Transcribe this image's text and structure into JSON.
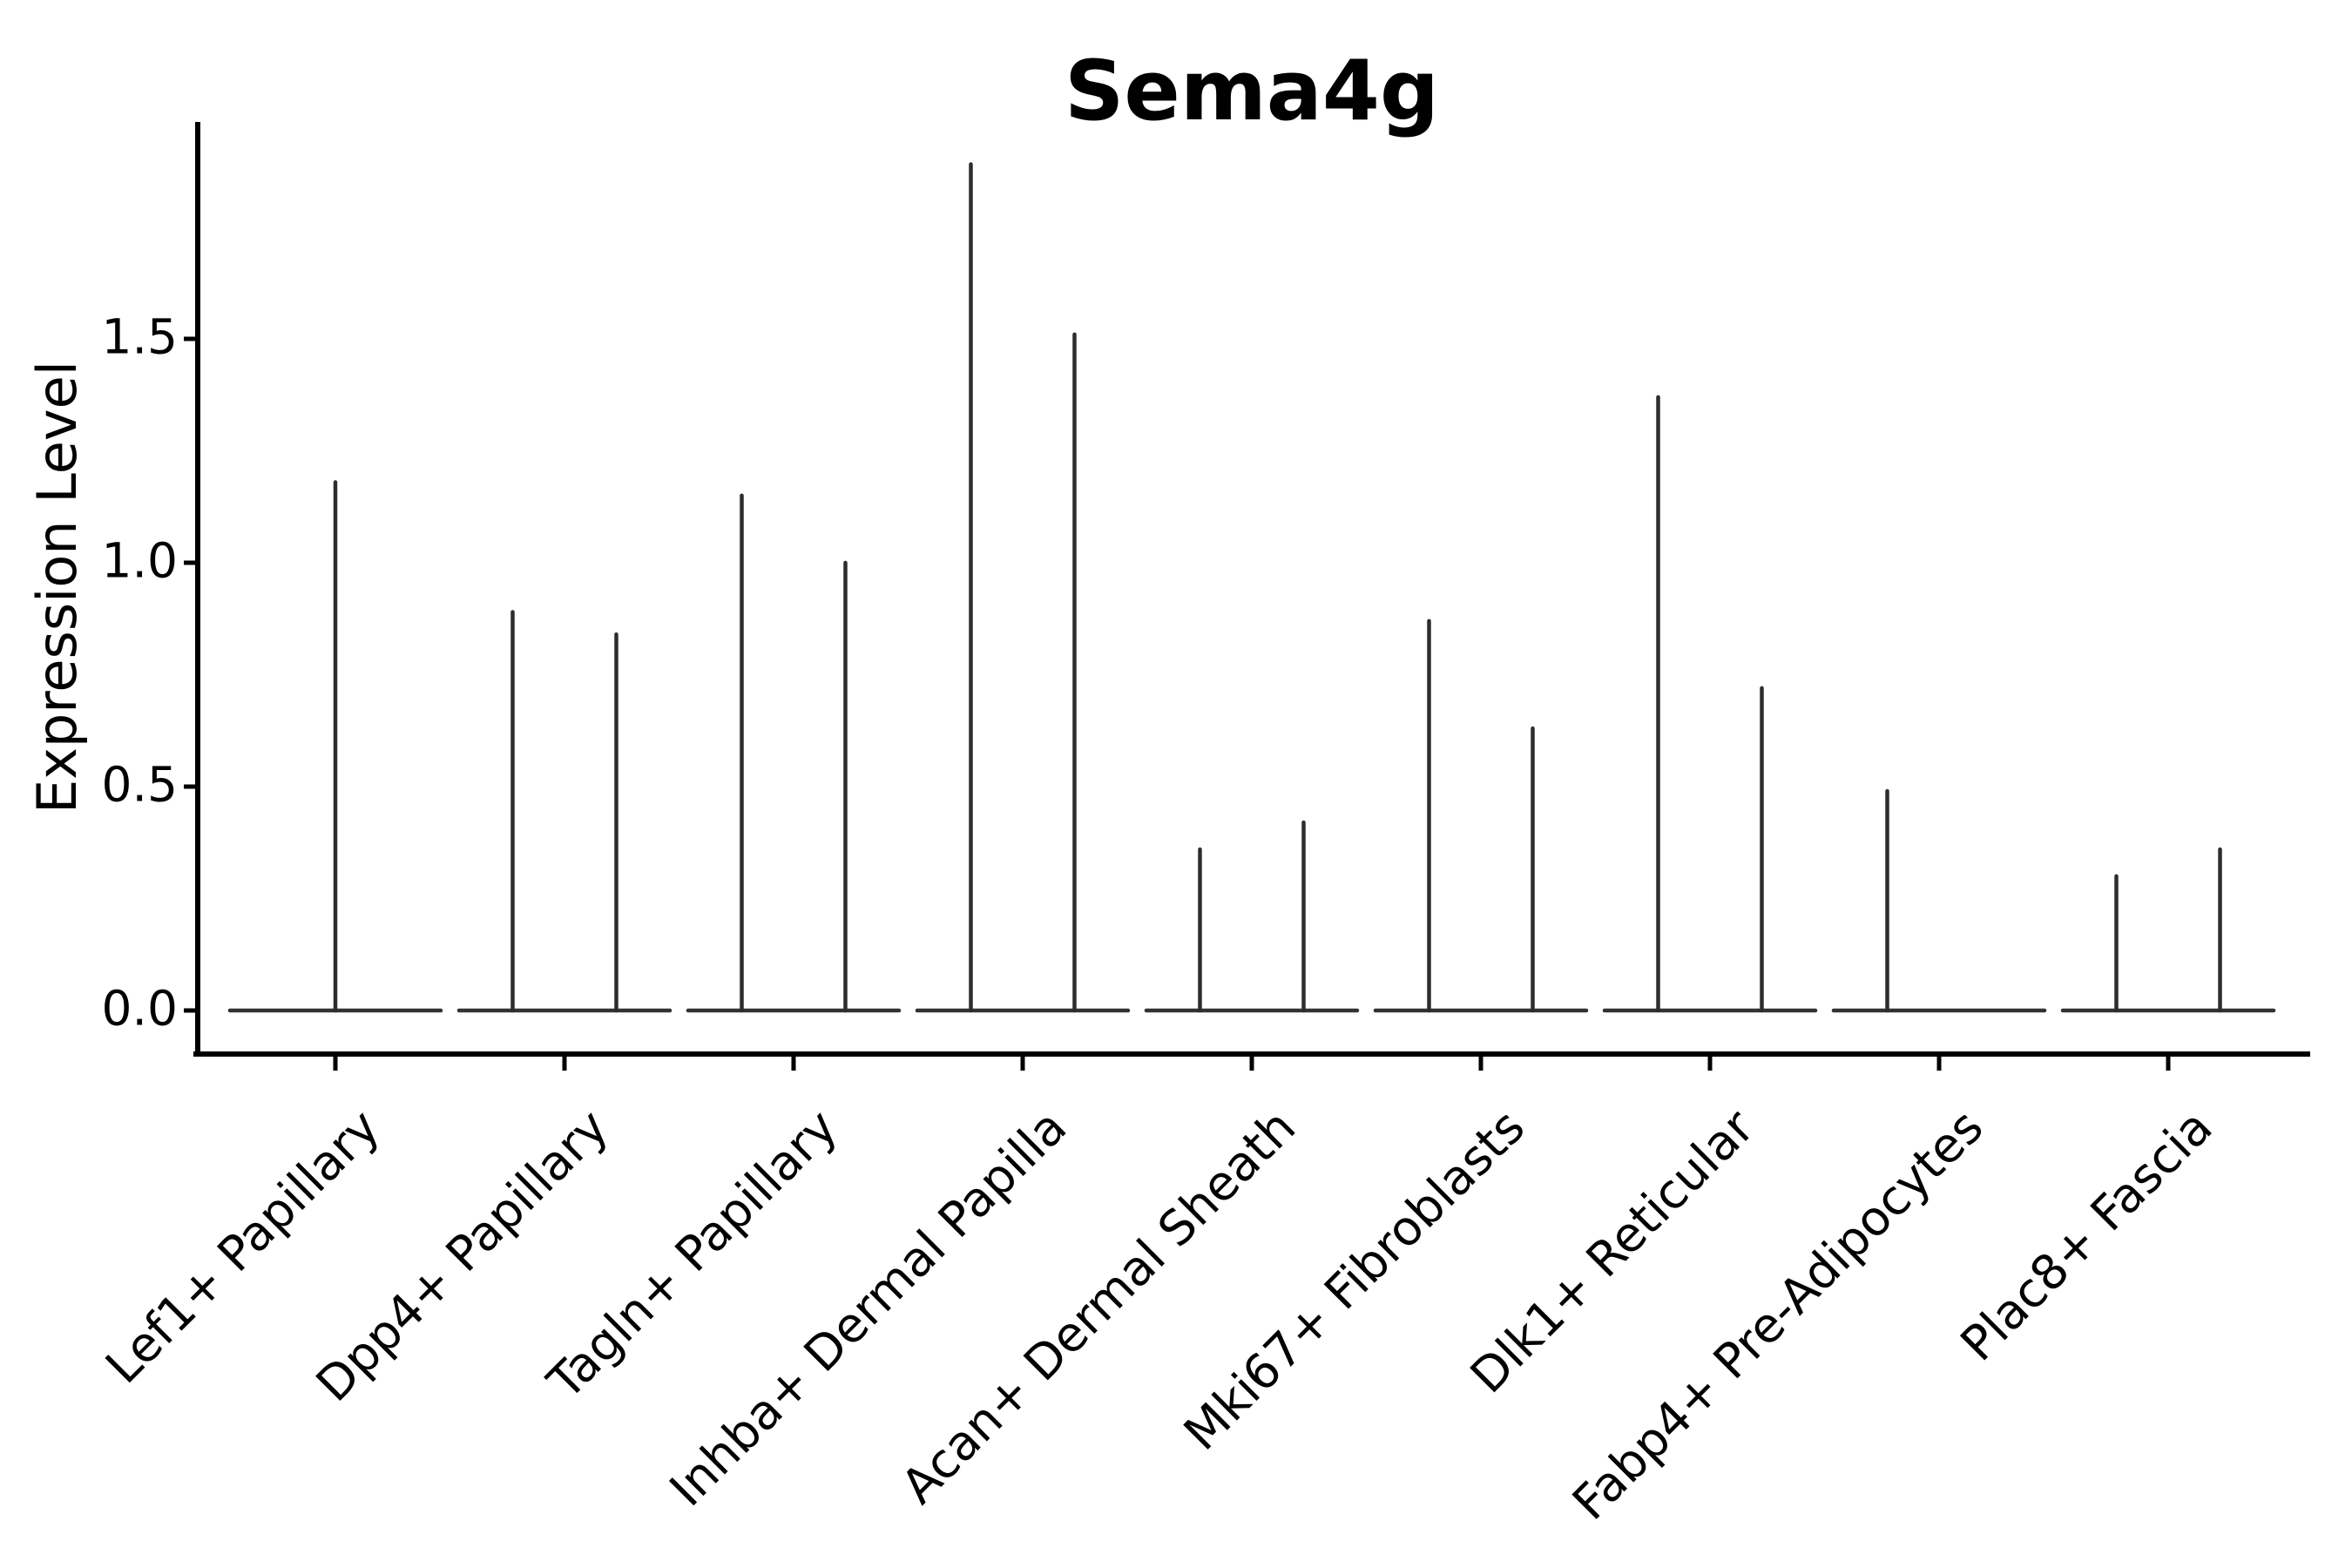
{
  "figure": {
    "background": "#ffffff",
    "spine_color": "#000000",
    "violin_color": "#2d2d2d",
    "baseline_color": "#333333"
  },
  "chart_data": {
    "type": "violin",
    "title": "Sema4g",
    "xlabel": "",
    "ylabel": "Expression Level",
    "ylim": [
      -0.1,
      1.98
    ],
    "grid": false,
    "legend": "none",
    "ytick_labels": [
      "0.0",
      "0.5",
      "1.0",
      "1.5"
    ],
    "ytick_values": [
      0.0,
      0.5,
      1.0,
      1.5
    ],
    "categories": [
      "Lef1+ Papillary",
      "Dpp4+ Papillary",
      "Tagln+ Papillary",
      "Inhba+ Dermal Papilla",
      "Acan+ Dermal Sheath",
      "Mki67+ Fibroblasts",
      "Dlk1+ Reticular",
      "Fabp4+ Pre-Adipocytes",
      "Plac8+ Fascia"
    ],
    "violins": [
      {
        "category": "Lef1+ Papillary",
        "layout": "single",
        "peaks": [
          1.18
        ]
      },
      {
        "category": "Dpp4+ Papillary",
        "layout": "pair",
        "peaks": [
          0.89,
          0.84
        ]
      },
      {
        "category": "Tagln+ Papillary",
        "layout": "pair",
        "peaks": [
          1.15,
          1.0
        ]
      },
      {
        "category": "Inhba+ Dermal Papilla",
        "layout": "pair",
        "peaks": [
          1.89,
          1.51
        ]
      },
      {
        "category": "Acan+ Dermal Sheath",
        "layout": "pair",
        "peaks": [
          0.36,
          0.42
        ]
      },
      {
        "category": "Mki67+ Fibroblasts",
        "layout": "pair",
        "peaks": [
          0.87,
          0.63
        ]
      },
      {
        "category": "Dlk1+ Reticular",
        "layout": "pair",
        "peaks": [
          1.37,
          0.72
        ]
      },
      {
        "category": "Fabp4+ Pre-Adipocytes",
        "layout": "pair",
        "peaks": [
          0.49,
          0.0
        ]
      },
      {
        "category": "Plac8+ Fascia",
        "layout": "pair",
        "peaks": [
          0.3,
          0.36
        ]
      }
    ],
    "annotation": "Each category shows a width-collapsed violin: flat base at 0 with thin density spikes; peaks are max expression per violin."
  }
}
